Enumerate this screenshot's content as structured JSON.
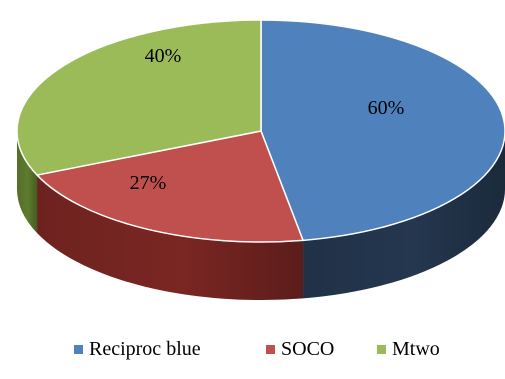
{
  "chart_data": {
    "type": "pie",
    "variant": "3d",
    "title": "",
    "legend_position": "bottom",
    "slices": [
      {
        "name": "Reciproc blue",
        "value": 60,
        "label": "60%",
        "color": "#4f81bd",
        "side_color": "#24374f"
      },
      {
        "name": "SOCO",
        "value": 27,
        "label": "27%",
        "color": "#c0504d",
        "side_color": "#7a2623"
      },
      {
        "name": "Mtwo",
        "value": 40,
        "label": "40%",
        "color": "#9bbb59",
        "side_color": "#5d7b2d"
      }
    ]
  }
}
